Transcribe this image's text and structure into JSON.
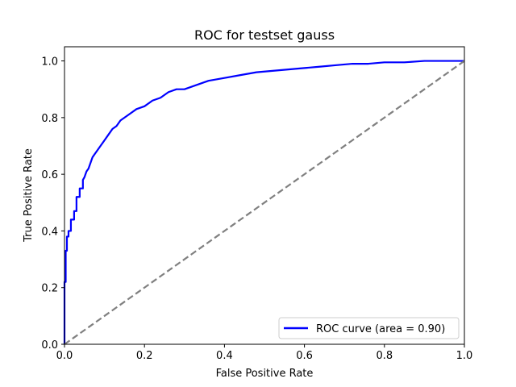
{
  "chart_data": {
    "type": "line",
    "title": "ROC for testset gauss",
    "xlabel": "False Positive Rate",
    "ylabel": "True Positive Rate",
    "xlim": [
      0.0,
      1.0
    ],
    "ylim": [
      0.0,
      1.05
    ],
    "x_ticks": [
      "0.0",
      "0.2",
      "0.4",
      "0.6",
      "0.8",
      "1.0"
    ],
    "y_ticks": [
      "0.0",
      "0.2",
      "0.4",
      "0.6",
      "0.8",
      "1.0"
    ],
    "grid": false,
    "legend_position": "lower-right",
    "series": [
      {
        "name": "ROC curve (area = 0.90)",
        "color": "#0000ff",
        "style": "solid",
        "x": [
          0.0,
          0.0,
          0.003,
          0.003,
          0.006,
          0.006,
          0.01,
          0.01,
          0.016,
          0.016,
          0.024,
          0.024,
          0.03,
          0.03,
          0.038,
          0.038,
          0.046,
          0.046,
          0.05,
          0.055,
          0.06,
          0.065,
          0.07,
          0.075,
          0.08,
          0.085,
          0.09,
          0.1,
          0.11,
          0.12,
          0.13,
          0.14,
          0.16,
          0.18,
          0.2,
          0.22,
          0.24,
          0.26,
          0.28,
          0.3,
          0.32,
          0.34,
          0.36,
          0.38,
          0.4,
          0.44,
          0.48,
          0.52,
          0.56,
          0.6,
          0.64,
          0.68,
          0.72,
          0.76,
          0.8,
          0.85,
          0.9,
          0.95,
          1.0
        ],
        "y": [
          0.0,
          0.22,
          0.22,
          0.33,
          0.33,
          0.38,
          0.38,
          0.4,
          0.4,
          0.44,
          0.44,
          0.47,
          0.47,
          0.52,
          0.52,
          0.55,
          0.55,
          0.58,
          0.59,
          0.61,
          0.62,
          0.64,
          0.66,
          0.67,
          0.68,
          0.69,
          0.7,
          0.72,
          0.74,
          0.76,
          0.77,
          0.79,
          0.81,
          0.83,
          0.84,
          0.86,
          0.87,
          0.89,
          0.9,
          0.9,
          0.91,
          0.92,
          0.93,
          0.935,
          0.94,
          0.95,
          0.96,
          0.965,
          0.97,
          0.975,
          0.98,
          0.985,
          0.99,
          0.99,
          0.995,
          0.995,
          1.0,
          1.0,
          1.0
        ]
      },
      {
        "color": "#808080",
        "style": "dashed",
        "x": [
          0.0,
          1.0
        ],
        "y": [
          0.0,
          1.0
        ]
      }
    ]
  }
}
